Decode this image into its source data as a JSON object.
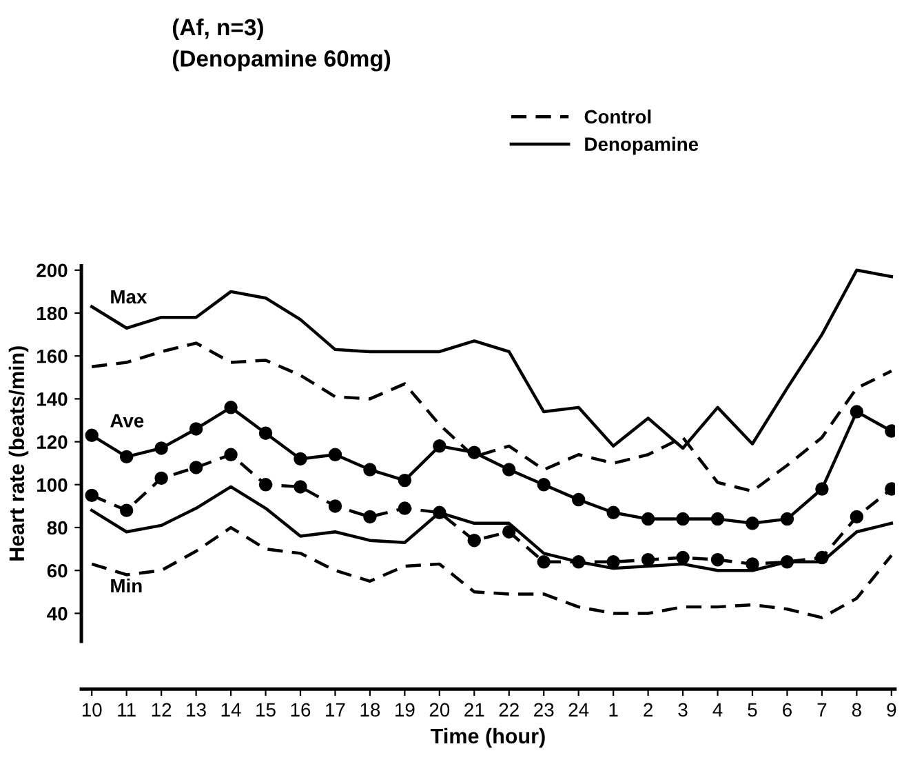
{
  "chart_data": {
    "type": "line",
    "title": "(Af, n=3)",
    "subtitle": "(Denopamine 60mg)",
    "xlabel": "Time (hour)",
    "ylabel": "Heart rate (beats/min)",
    "categories": [
      "10",
      "11",
      "12",
      "13",
      "14",
      "15",
      "16",
      "17",
      "18",
      "19",
      "20",
      "21",
      "22",
      "23",
      "24",
      "1",
      "2",
      "3",
      "4",
      "5",
      "6",
      "7",
      "8",
      "9"
    ],
    "series": [
      {
        "name": "Control",
        "color": "#000000",
        "line_style": "dashed",
        "marker": "none",
        "values": [
          155,
          157,
          162,
          166,
          157,
          158,
          151,
          141,
          140,
          147,
          128,
          113,
          118,
          107,
          114,
          110,
          114,
          122,
          101,
          97,
          109,
          122,
          145,
          153
        ]
      },
      {
        "name": "Denopamine",
        "color": "#000000",
        "line_style": "solid",
        "marker": "none",
        "values": [
          183,
          173,
          178,
          178,
          190,
          187,
          177,
          163,
          162,
          162,
          162,
          167,
          162,
          134,
          136,
          118,
          131,
          117,
          136,
          119,
          145,
          170,
          200,
          197
        ]
      },
      {
        "color": "#000000",
        "line_style": "solid",
        "marker": "circle",
        "values": [
          123,
          113,
          117,
          126,
          136,
          124,
          112,
          114,
          107,
          102,
          118,
          115,
          107,
          100,
          93,
          87,
          84,
          84,
          84,
          82,
          84,
          98,
          134,
          125
        ]
      },
      {
        "color": "#000000",
        "line_style": "dashed",
        "marker": "circle",
        "values": [
          95,
          88,
          103,
          108,
          114,
          100,
          99,
          90,
          85,
          89,
          87,
          74,
          78,
          64,
          64,
          64,
          65,
          66,
          65,
          63,
          64,
          66,
          85,
          98
        ]
      },
      {
        "color": "#000000",
        "line_style": "solid",
        "marker": "none",
        "values": [
          88,
          78,
          81,
          89,
          99,
          89,
          76,
          78,
          74,
          73,
          87,
          82,
          82,
          68,
          64,
          61,
          62,
          63,
          60,
          60,
          64,
          64,
          78,
          82
        ]
      },
      {
        "color": "#000000",
        "line_style": "dashed",
        "marker": "none",
        "values": [
          63,
          58,
          60,
          69,
          80,
          70,
          68,
          60,
          55,
          62,
          63,
          50,
          49,
          49,
          43,
          40,
          40,
          43,
          43,
          44,
          42,
          38,
          47,
          67
        ]
      }
    ],
    "annotations": [
      "Max",
      "Ave",
      "Min"
    ],
    "ylim": [
      27,
      202
    ],
    "yticks": [
      40,
      60,
      80,
      100,
      120,
      140,
      160,
      180,
      200
    ],
    "grid": false,
    "legend": "top right"
  }
}
